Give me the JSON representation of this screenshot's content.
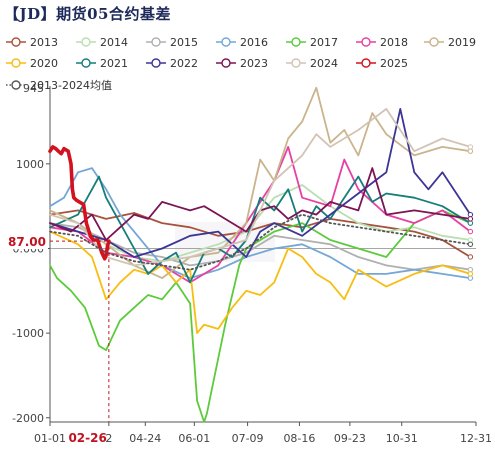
{
  "title": "【JD】期货05合约基差",
  "colors": {
    "2013": "#a8523d",
    "2014": "#b9dfb0",
    "2015": "#b0b0b0",
    "2016": "#74a7d6",
    "2017": "#5bcb3b",
    "2018": "#e83fa3",
    "2019": "#c9b48c",
    "2020": "#f7bd10",
    "2021": "#157d7a",
    "2022": "#3b3596",
    "2023": "#7b1455",
    "2024": "#d2c4b4",
    "2025": "#d4121f",
    "avg": "#555555"
  },
  "chart_data": {
    "type": "line",
    "title": "【JD】期货05合约基差",
    "x_ticks": [
      "01-01",
      "02-26",
      "04-24",
      "06-01",
      "07-09",
      "08-16",
      "09-23",
      "10-31",
      "12-31"
    ],
    "x_ticks_display": [
      "01-01",
      "2",
      "04-24",
      "06-01",
      "07-09",
      "08-16",
      "09-23",
      "10-31",
      "12-31"
    ],
    "x_tick_pos": [
      0,
      42,
      68,
      103,
      141,
      178,
      214,
      251,
      304
    ],
    "x_range": [
      0,
      304
    ],
    "highlight_x_label": "02-26",
    "highlight_x": 42,
    "y_ticks": [
      -2000,
      -1000,
      "0.000",
      1000
    ],
    "y_tick_values": [
      -2000,
      -1000,
      0,
      1000
    ],
    "y_top_label": "945",
    "ylim": [
      -2050,
      1920
    ],
    "grid": false,
    "legend_position": "top",
    "current_value_label": "87.00",
    "current_value": 87,
    "series": [
      {
        "name": "2013",
        "key": "2013",
        "style": "solid",
        "points": [
          [
            0,
            400
          ],
          [
            20,
            450
          ],
          [
            40,
            350
          ],
          [
            60,
            420
          ],
          [
            80,
            300
          ],
          [
            100,
            250
          ],
          [
            120,
            150
          ],
          [
            140,
            200
          ],
          [
            160,
            300
          ],
          [
            180,
            250
          ],
          [
            200,
            350
          ],
          [
            220,
            300
          ],
          [
            240,
            250
          ],
          [
            260,
            200
          ],
          [
            280,
            100
          ],
          [
            300,
            -100
          ]
        ]
      },
      {
        "name": "2014",
        "key": "2014",
        "style": "solid",
        "points": [
          [
            0,
            450
          ],
          [
            20,
            300
          ],
          [
            40,
            50
          ],
          [
            60,
            -100
          ],
          [
            80,
            -150
          ],
          [
            100,
            -50
          ],
          [
            120,
            50
          ],
          [
            140,
            200
          ],
          [
            160,
            600
          ],
          [
            180,
            750
          ],
          [
            200,
            500
          ],
          [
            220,
            300
          ],
          [
            240,
            200
          ],
          [
            260,
            250
          ],
          [
            280,
            150
          ],
          [
            300,
            100
          ]
        ]
      },
      {
        "name": "2015",
        "key": "2015",
        "style": "solid",
        "points": [
          [
            0,
            300
          ],
          [
            20,
            250
          ],
          [
            40,
            100
          ],
          [
            60,
            -50
          ],
          [
            80,
            -100
          ],
          [
            100,
            -200
          ],
          [
            120,
            -150
          ],
          [
            140,
            -50
          ],
          [
            160,
            150
          ],
          [
            180,
            100
          ],
          [
            200,
            50
          ],
          [
            220,
            -100
          ],
          [
            240,
            -200
          ],
          [
            260,
            -250
          ],
          [
            280,
            -200
          ],
          [
            300,
            -250
          ]
        ]
      },
      {
        "name": "2016",
        "key": "2016",
        "style": "solid",
        "points": [
          [
            0,
            500
          ],
          [
            10,
            600
          ],
          [
            20,
            900
          ],
          [
            30,
            950
          ],
          [
            40,
            700
          ],
          [
            50,
            400
          ],
          [
            60,
            200
          ],
          [
            80,
            -200
          ],
          [
            100,
            -350
          ],
          [
            120,
            -250
          ],
          [
            140,
            -100
          ],
          [
            160,
            0
          ],
          [
            180,
            50
          ],
          [
            200,
            -100
          ],
          [
            220,
            -300
          ],
          [
            240,
            -300
          ],
          [
            260,
            -250
          ],
          [
            280,
            -300
          ],
          [
            300,
            -350
          ]
        ]
      },
      {
        "name": "2017",
        "key": "2017",
        "style": "solid",
        "points": [
          [
            0,
            -200
          ],
          [
            5,
            -350
          ],
          [
            15,
            -500
          ],
          [
            25,
            -700
          ],
          [
            35,
            -1150
          ],
          [
            40,
            -1200
          ],
          [
            50,
            -850
          ],
          [
            60,
            -700
          ],
          [
            70,
            -550
          ],
          [
            80,
            -600
          ],
          [
            90,
            -400
          ],
          [
            100,
            -650
          ],
          [
            105,
            -1800
          ],
          [
            108,
            -1950
          ],
          [
            110,
            -2050
          ],
          [
            112,
            -1950
          ],
          [
            115,
            -1700
          ],
          [
            120,
            -1300
          ],
          [
            125,
            -900
          ],
          [
            130,
            -550
          ],
          [
            135,
            -200
          ],
          [
            140,
            0
          ],
          [
            160,
            200
          ],
          [
            180,
            300
          ],
          [
            200,
            100
          ],
          [
            220,
            0
          ],
          [
            240,
            -100
          ],
          [
            260,
            300
          ],
          [
            280,
            450
          ],
          [
            300,
            300
          ]
        ]
      },
      {
        "name": "2018",
        "key": "2018",
        "style": "solid",
        "points": [
          [
            0,
            250
          ],
          [
            20,
            200
          ],
          [
            40,
            -50
          ],
          [
            60,
            -100
          ],
          [
            80,
            -200
          ],
          [
            100,
            -400
          ],
          [
            120,
            -200
          ],
          [
            140,
            300
          ],
          [
            160,
            800
          ],
          [
            170,
            1200
          ],
          [
            180,
            600
          ],
          [
            200,
            500
          ],
          [
            210,
            1050
          ],
          [
            220,
            700
          ],
          [
            240,
            400
          ],
          [
            260,
            300
          ],
          [
            280,
            450
          ],
          [
            300,
            200
          ]
        ]
      },
      {
        "name": "2019",
        "key": "2019",
        "style": "solid",
        "points": [
          [
            0,
            450
          ],
          [
            20,
            300
          ],
          [
            40,
            50
          ],
          [
            60,
            -200
          ],
          [
            80,
            -350
          ],
          [
            100,
            -100
          ],
          [
            120,
            -50
          ],
          [
            140,
            300
          ],
          [
            150,
            1050
          ],
          [
            160,
            800
          ],
          [
            170,
            1300
          ],
          [
            180,
            1500
          ],
          [
            190,
            1900
          ],
          [
            200,
            1250
          ],
          [
            210,
            1400
          ],
          [
            220,
            1100
          ],
          [
            230,
            1600
          ],
          [
            240,
            1350
          ],
          [
            260,
            1100
          ],
          [
            280,
            1200
          ],
          [
            300,
            1150
          ]
        ]
      },
      {
        "name": "2020",
        "key": "2020",
        "style": "solid",
        "points": [
          [
            0,
            200
          ],
          [
            20,
            50
          ],
          [
            30,
            -100
          ],
          [
            40,
            -600
          ],
          [
            50,
            -400
          ],
          [
            60,
            -250
          ],
          [
            70,
            -300
          ],
          [
            80,
            -200
          ],
          [
            90,
            -400
          ],
          [
            100,
            -250
          ],
          [
            105,
            -1000
          ],
          [
            110,
            -900
          ],
          [
            120,
            -950
          ],
          [
            130,
            -700
          ],
          [
            140,
            -500
          ],
          [
            150,
            -550
          ],
          [
            160,
            -400
          ],
          [
            170,
            0
          ],
          [
            180,
            -100
          ],
          [
            190,
            -300
          ],
          [
            200,
            -400
          ],
          [
            210,
            -600
          ],
          [
            220,
            -250
          ],
          [
            240,
            -450
          ],
          [
            260,
            -300
          ],
          [
            280,
            -200
          ],
          [
            300,
            -300
          ]
        ]
      },
      {
        "name": "2021",
        "key": "2021",
        "style": "solid",
        "points": [
          [
            0,
            250
          ],
          [
            20,
            400
          ],
          [
            30,
            700
          ],
          [
            35,
            850
          ],
          [
            40,
            600
          ],
          [
            50,
            300
          ],
          [
            60,
            0
          ],
          [
            70,
            -300
          ],
          [
            80,
            -150
          ],
          [
            90,
            -50
          ],
          [
            100,
            -400
          ],
          [
            110,
            -50
          ],
          [
            120,
            0
          ],
          [
            130,
            -100
          ],
          [
            140,
            100
          ],
          [
            150,
            600
          ],
          [
            160,
            450
          ],
          [
            170,
            700
          ],
          [
            180,
            200
          ],
          [
            190,
            500
          ],
          [
            200,
            350
          ],
          [
            210,
            600
          ],
          [
            220,
            850
          ],
          [
            230,
            550
          ],
          [
            240,
            650
          ],
          [
            260,
            600
          ],
          [
            280,
            500
          ],
          [
            300,
            300
          ]
        ]
      },
      {
        "name": "2022",
        "key": "2022",
        "style": "solid",
        "points": [
          [
            0,
            300
          ],
          [
            20,
            200
          ],
          [
            40,
            100
          ],
          [
            60,
            -100
          ],
          [
            80,
            0
          ],
          [
            100,
            150
          ],
          [
            120,
            200
          ],
          [
            140,
            -100
          ],
          [
            150,
            200
          ],
          [
            160,
            300
          ],
          [
            180,
            150
          ],
          [
            200,
            400
          ],
          [
            220,
            650
          ],
          [
            240,
            900
          ],
          [
            250,
            1650
          ],
          [
            260,
            900
          ],
          [
            270,
            700
          ],
          [
            280,
            900
          ],
          [
            300,
            400
          ]
        ]
      },
      {
        "name": "2023",
        "key": "2023",
        "style": "solid",
        "points": [
          [
            0,
            300
          ],
          [
            15,
            200
          ],
          [
            30,
            400
          ],
          [
            40,
            100
          ],
          [
            50,
            250
          ],
          [
            60,
            400
          ],
          [
            70,
            350
          ],
          [
            80,
            550
          ],
          [
            90,
            500
          ],
          [
            100,
            450
          ],
          [
            110,
            500
          ],
          [
            120,
            400
          ],
          [
            130,
            300
          ],
          [
            140,
            200
          ],
          [
            150,
            450
          ],
          [
            160,
            500
          ],
          [
            170,
            350
          ],
          [
            180,
            450
          ],
          [
            190,
            400
          ],
          [
            200,
            550
          ],
          [
            210,
            500
          ],
          [
            220,
            450
          ],
          [
            230,
            950
          ],
          [
            240,
            400
          ],
          [
            260,
            450
          ],
          [
            280,
            400
          ],
          [
            300,
            350
          ]
        ]
      },
      {
        "name": "2024",
        "key": "2024",
        "style": "solid",
        "points": [
          [
            0,
            400
          ],
          [
            20,
            300
          ],
          [
            40,
            -100
          ],
          [
            60,
            -200
          ],
          [
            80,
            -150
          ],
          [
            100,
            -100
          ],
          [
            120,
            0
          ],
          [
            140,
            100
          ],
          [
            160,
            800
          ],
          [
            180,
            1100
          ],
          [
            190,
            1350
          ],
          [
            200,
            1200
          ],
          [
            220,
            1400
          ],
          [
            240,
            1650
          ],
          [
            260,
            1150
          ],
          [
            280,
            1300
          ],
          [
            300,
            1200
          ]
        ]
      },
      {
        "name": "2025",
        "key": "2025",
        "style": "bold",
        "points": [
          [
            0,
            1150
          ],
          [
            2,
            1200
          ],
          [
            4,
            1180
          ],
          [
            6,
            1150
          ],
          [
            8,
            1120
          ],
          [
            10,
            1180
          ],
          [
            13,
            1150
          ],
          [
            15,
            1000
          ],
          [
            16,
            700
          ],
          [
            17,
            600
          ],
          [
            19,
            570
          ],
          [
            22,
            540
          ],
          [
            24,
            520
          ],
          [
            26,
            300
          ],
          [
            29,
            140
          ],
          [
            31,
            100
          ],
          [
            34,
            100
          ],
          [
            37,
            -50
          ],
          [
            39,
            -120
          ],
          [
            40,
            -80
          ],
          [
            41,
            30
          ],
          [
            42,
            87
          ]
        ]
      },
      {
        "name": "2013-2024均值",
        "key": "avg",
        "style": "dotted",
        "points": [
          [
            0,
            200
          ],
          [
            20,
            150
          ],
          [
            40,
            -50
          ],
          [
            60,
            -150
          ],
          [
            80,
            -200
          ],
          [
            100,
            -250
          ],
          [
            120,
            -150
          ],
          [
            140,
            0
          ],
          [
            160,
            250
          ],
          [
            180,
            400
          ],
          [
            200,
            300
          ],
          [
            220,
            250
          ],
          [
            240,
            200
          ],
          [
            260,
            150
          ],
          [
            280,
            100
          ],
          [
            300,
            50
          ]
        ]
      }
    ]
  }
}
